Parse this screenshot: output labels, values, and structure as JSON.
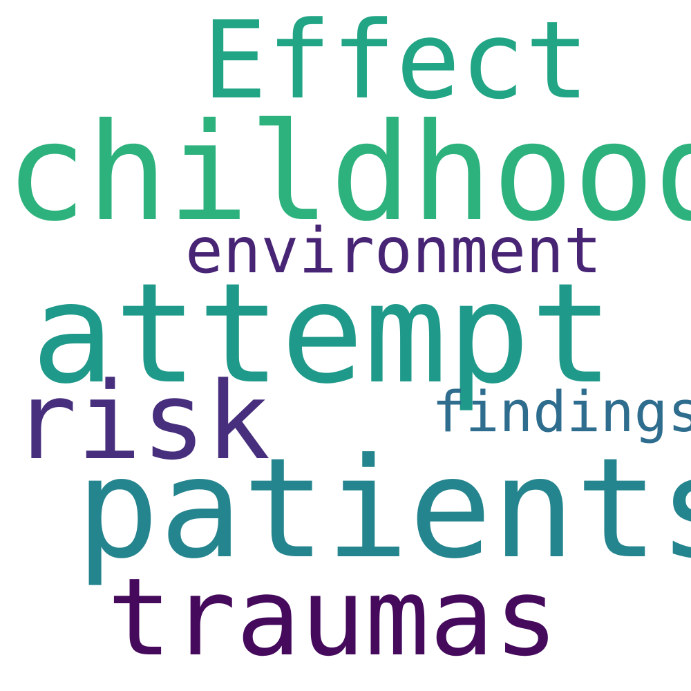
{
  "words": [
    {
      "id": "w-effect",
      "text": "Effect",
      "color": "#21a585"
    },
    {
      "id": "w-childhood",
      "text": "childhood",
      "color": "#2db27d"
    },
    {
      "id": "w-environment",
      "text": "environment",
      "color": "#482475"
    },
    {
      "id": "w-attempt",
      "text": "attempt",
      "color": "#1f9a8a"
    },
    {
      "id": "w-risk",
      "text": "risk",
      "color": "#472f7d"
    },
    {
      "id": "w-findings",
      "text": "findings",
      "color": "#2e6d8e"
    },
    {
      "id": "w-patients",
      "text": "patients",
      "color": "#25858e"
    },
    {
      "id": "w-traumas",
      "text": "traumas",
      "color": "#450a5c"
    }
  ]
}
